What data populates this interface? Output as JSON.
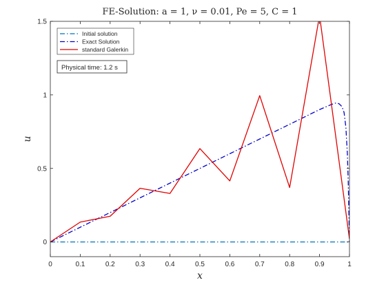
{
  "chart_data": {
    "type": "line",
    "title": "FE-Solution: a = 1,  ν = 0.01,  Pe = 5,  C = 1",
    "xlabel": "x",
    "ylabel": "u",
    "xlim": [
      0,
      1
    ],
    "ylim": [
      -0.1,
      1.5
    ],
    "xticks": [
      0,
      0.1,
      0.2,
      0.3,
      0.4,
      0.5,
      0.6,
      0.7,
      0.8,
      0.9,
      1
    ],
    "xtick_labels": [
      "0",
      "0.1",
      "0.2",
      "0.3",
      "0.4",
      "0.5",
      "0.6",
      "0.7",
      "0.8",
      "0.9",
      "1"
    ],
    "yticks": [
      0,
      0.5,
      1,
      1.5
    ],
    "ytick_labels": [
      "0",
      "0.5",
      "1",
      "1.5"
    ],
    "grid": false,
    "legend_position": "top-left",
    "annotation": "Physical time: 1.2  s",
    "series": [
      {
        "name": "Initial solution",
        "color": "#0072BD",
        "dash": "dash-dot",
        "x": [
          0,
          1
        ],
        "y": [
          0,
          0
        ]
      },
      {
        "name": "Exact Solution",
        "color": "#0000CC",
        "dash": "dash-dot",
        "x": [
          0,
          0.1,
          0.2,
          0.3,
          0.4,
          0.5,
          0.6,
          0.7,
          0.8,
          0.9,
          0.94,
          0.955,
          0.965,
          0.975,
          0.982,
          0.988,
          0.993,
          0.996,
          0.998,
          1.0
        ],
        "y": [
          0,
          0.1,
          0.2,
          0.3,
          0.4,
          0.5,
          0.6,
          0.7,
          0.8,
          0.9,
          0.935,
          0.945,
          0.94,
          0.92,
          0.88,
          0.78,
          0.6,
          0.4,
          0.2,
          0.0
        ]
      },
      {
        "name": "standard Galerkin",
        "color": "#E00000",
        "dash": "solid",
        "x": [
          0,
          0.1,
          0.2,
          0.3,
          0.4,
          0.5,
          0.6,
          0.7,
          0.8,
          0.9,
          1.0
        ],
        "y": [
          0,
          0.135,
          0.175,
          0.365,
          0.33,
          0.635,
          0.415,
          0.995,
          0.37,
          1.54,
          0.02
        ]
      }
    ]
  }
}
